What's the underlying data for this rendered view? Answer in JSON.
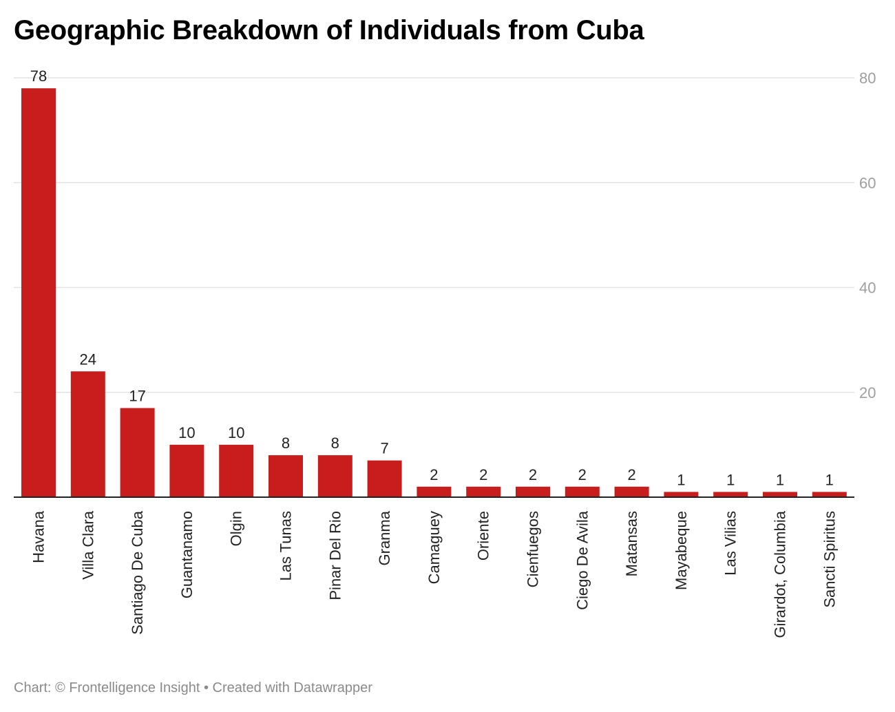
{
  "colors": {
    "bar": "#c71e1d",
    "grid": "#e2e2e2",
    "tick_label": "#9e9e9e",
    "value_label": "#222222",
    "axis": "#222222"
  },
  "footer": {
    "text": "Chart: © Frontelligence Insight • Created with Datawrapper"
  },
  "chart_data": {
    "type": "bar",
    "title": "Geographic Breakdown of Individuals from Cuba",
    "xlabel": "",
    "ylabel": "",
    "categories": [
      "Havana",
      "Villa Clara",
      "Santiago De Cuba",
      "Guantanamo",
      "Olgin",
      "Las Tunas",
      "Pinar Del Rio",
      "Granma",
      "Camaguey",
      "Oriente",
      "Cienfuegos",
      "Ciego De Avila",
      "Matansas",
      "Mayabeque",
      "Las Vilias",
      "Girardot, Columbia",
      "Sancti Spiritus"
    ],
    "values": [
      78,
      24,
      17,
      10,
      10,
      8,
      8,
      7,
      2,
      2,
      2,
      2,
      2,
      1,
      1,
      1,
      1
    ],
    "ylim": [
      0,
      80
    ],
    "yticks": [
      20,
      40,
      60,
      80
    ],
    "y_axis_position": "right",
    "grid": true,
    "data_labels": true,
    "legend": "none"
  }
}
